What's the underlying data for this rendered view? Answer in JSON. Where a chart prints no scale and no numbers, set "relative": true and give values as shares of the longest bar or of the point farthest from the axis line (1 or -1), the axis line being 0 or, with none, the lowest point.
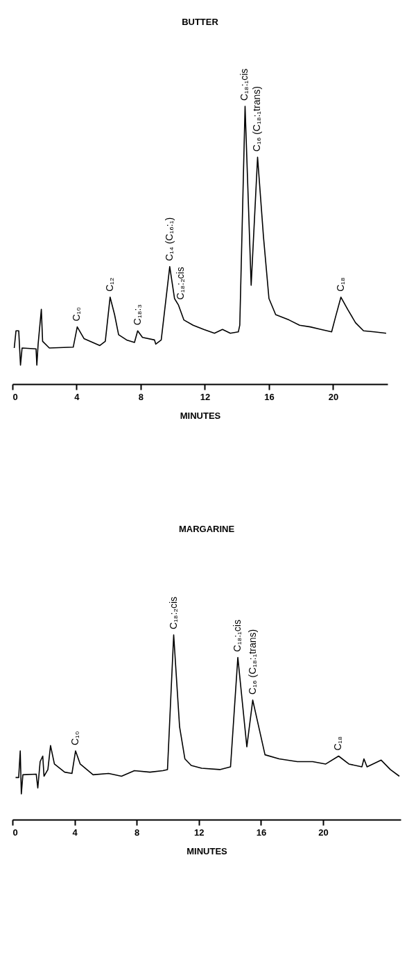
{
  "chart_data": [
    {
      "type": "line",
      "title": "BUTTER",
      "xlabel": "MINUTES",
      "relative": true,
      "xlim": [
        0,
        23.4
      ],
      "xticks": [
        0,
        4,
        8,
        12,
        16,
        20
      ],
      "tick_labels": "x",
      "grid": false,
      "legend": false,
      "marker": "none",
      "line_style": "solid",
      "x": [
        0.11,
        0.22,
        0.39,
        0.5,
        0.6,
        1.47,
        1.52,
        1.6,
        1.8,
        1.88,
        2.3,
        3.79,
        4.04,
        4.46,
        5.45,
        5.79,
        6.09,
        6.37,
        6.62,
        7.12,
        7.61,
        7.81,
        8.11,
        8.86,
        8.94,
        9.28,
        9.81,
        10.11,
        10.36,
        10.69,
        11.27,
        11.93,
        12.6,
        13.1,
        13.59,
        14.09,
        14.18,
        14.51,
        14.89,
        15.29,
        15.66,
        16.0,
        16.42,
        17.25,
        17.91,
        18.58,
        19.24,
        19.91,
        20.15,
        20.49,
        20.91,
        21.4,
        21.9,
        22.57,
        23.31
      ],
      "series": [
        {
          "color": "#000000",
          "values": [
            0.13,
            0.192,
            0.192,
            0.068,
            0.13,
            0.127,
            0.068,
            0.144,
            0.269,
            0.154,
            0.13,
            0.133,
            0.206,
            0.164,
            0.139,
            0.154,
            0.313,
            0.25,
            0.178,
            0.159,
            0.15,
            0.192,
            0.168,
            0.159,
            0.144,
            0.159,
            0.423,
            0.308,
            0.284,
            0.231,
            0.212,
            0.197,
            0.183,
            0.197,
            0.183,
            0.188,
            0.212,
            1.0,
            0.356,
            0.817,
            0.529,
            0.308,
            0.25,
            0.231,
            0.212,
            0.206,
            0.197,
            0.188,
            0.241,
            0.313,
            0.269,
            0.221,
            0.192,
            0.188,
            0.183
          ]
        }
      ],
      "annotations": [
        {
          "text": "C₁₀",
          "x": 4.04,
          "y": 0.206
        },
        {
          "text": "C₁₂",
          "x": 6.09,
          "y": 0.313
        },
        {
          "text": "C₁₈:₃",
          "x": 7.81,
          "y": 0.192
        },
        {
          "text": "C₁₄ (C₁₆:₁)",
          "x": 9.81,
          "y": 0.423
        },
        {
          "text": "C₁₈:₂cis",
          "x": 10.5,
          "y": 0.284
        },
        {
          "text": "C₁₈:₁cis",
          "x": 14.51,
          "y": 1.0
        },
        {
          "text": "C₁₆ (C₁₈:₁trans)",
          "x": 15.29,
          "y": 0.817
        },
        {
          "text": "C₁₈",
          "x": 20.49,
          "y": 0.313
        }
      ]
    },
    {
      "type": "line",
      "title": "MARGARINE",
      "xlabel": "MINUTES",
      "relative": true,
      "xlim": [
        0,
        25
      ],
      "xticks": [
        0,
        4,
        8,
        12,
        16,
        20
      ],
      "tick_labels": "x",
      "grid": false,
      "legend": false,
      "marker": "none",
      "line_style": "solid",
      "x": [
        0.2,
        0.4,
        0.5,
        0.57,
        0.67,
        1.53,
        1.63,
        1.78,
        1.95,
        2.03,
        2.28,
        2.45,
        2.7,
        3.36,
        3.83,
        4.06,
        4.36,
        5.19,
        6.19,
        7.02,
        7.85,
        8.85,
        9.68,
        9.98,
        10.38,
        10.76,
        11.1,
        11.51,
        12.18,
        13.35,
        14.04,
        14.51,
        15.09,
        15.47,
        16.26,
        17.17,
        18.34,
        19.33,
        20.17,
        21.0,
        21.66,
        22.5,
        22.63,
        22.83,
        23.74,
        24.33,
        24.91
      ],
      "series": [
        {
          "color": "#000000",
          "values": [
            0.228,
            0.228,
            0.372,
            0.139,
            0.243,
            0.246,
            0.171,
            0.314,
            0.344,
            0.235,
            0.271,
            0.401,
            0.301,
            0.257,
            0.25,
            0.372,
            0.301,
            0.243,
            0.25,
            0.235,
            0.265,
            0.257,
            0.265,
            0.271,
            1.0,
            0.502,
            0.329,
            0.293,
            0.278,
            0.271,
            0.286,
            0.878,
            0.394,
            0.647,
            0.351,
            0.329,
            0.314,
            0.314,
            0.301,
            0.344,
            0.301,
            0.286,
            0.329,
            0.286,
            0.322,
            0.271,
            0.235
          ]
        }
      ],
      "annotations": [
        {
          "text": "C₁₀",
          "x": 4.06,
          "y": 0.372
        },
        {
          "text": "C₁₈:₂cis",
          "x": 10.38,
          "y": 1.0
        },
        {
          "text": "C₁₈:₁cis",
          "x": 14.51,
          "y": 0.878
        },
        {
          "text": "C₁₆ (C₁₈:₁trans)",
          "x": 15.47,
          "y": 0.647
        },
        {
          "text": "C₁₈",
          "x": 21.0,
          "y": 0.344
        }
      ]
    }
  ]
}
